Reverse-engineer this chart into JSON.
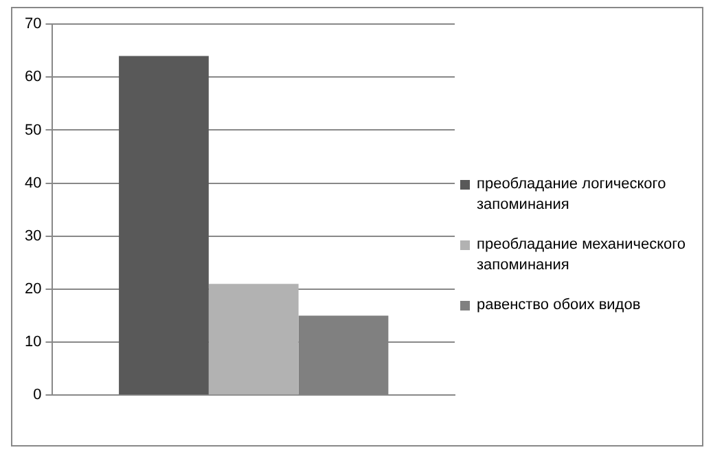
{
  "chart_data": {
    "type": "bar",
    "categories": [
      null
    ],
    "series": [
      {
        "name": "преобладание логического запоминания",
        "color": "#595959",
        "values": [
          64
        ]
      },
      {
        "name": "преобладание механического запоминания",
        "color": "#b2b2b2",
        "values": [
          21
        ]
      },
      {
        "name": "равенство обоих видов",
        "color": "#808080",
        "values": [
          15
        ]
      }
    ],
    "ylim": [
      0,
      70
    ],
    "yticks": [
      0,
      10,
      20,
      30,
      40,
      50,
      60,
      70
    ],
    "grid": "y",
    "legend": "right"
  }
}
